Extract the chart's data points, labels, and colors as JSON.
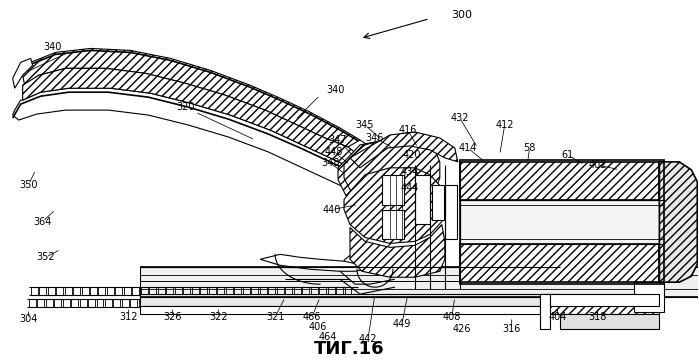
{
  "title": "ΤИГ.16",
  "title_fontsize": 13,
  "title_bold": true,
  "bg_color": "#ffffff",
  "line_color": "#000000",
  "figsize": [
    6.99,
    3.61
  ],
  "dpi": 100
}
